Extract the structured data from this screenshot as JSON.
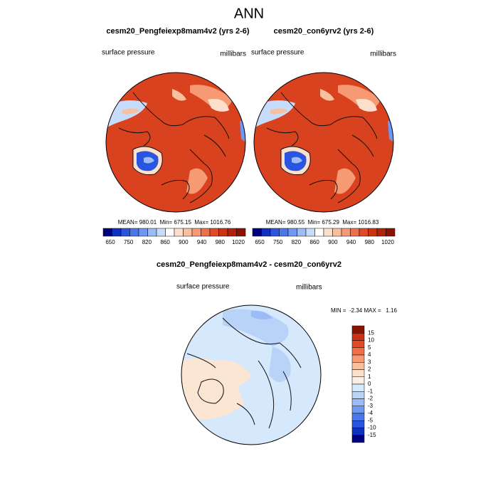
{
  "title": "ANN",
  "panels": [
    {
      "title": "cesm20_Pengfeiexp8mam4v2 (yrs 2-6)",
      "variable": "surface pressure",
      "units": "millibars",
      "stats": "MEAN= 980.01  Min= 675.15  Max= 1016.76"
    },
    {
      "title": "cesm20_con6yrv2 (yrs 2-6)",
      "variable": "surface pressure",
      "units": "millibars",
      "stats": "MEAN= 980.55  Min= 675.29  Max= 1016.83"
    },
    {
      "title": "cesm20_Pengfeiexp8mam4v2 - cesm20_con6yrv2",
      "variable": "surface pressure",
      "units": "millibars",
      "stats": "MIN =  -2.34 MAX =   1.16"
    }
  ],
  "colorbar": {
    "labels": [
      650,
      750,
      820,
      860,
      900,
      940,
      980,
      1020
    ],
    "colors": [
      "#00007f",
      "#1030c0",
      "#2a55e0",
      "#4a78ec",
      "#6f98f2",
      "#9bbcf6",
      "#c6dcfa",
      "#ffffff",
      "#fde0cc",
      "#f9c0a0",
      "#f59a72",
      "#ef7048",
      "#e24a26",
      "#cc3214",
      "#b02208",
      "#8a1200"
    ]
  },
  "diff_colorbar": {
    "labels": [
      15,
      10,
      5,
      4,
      3,
      2,
      1,
      0,
      -1,
      -2,
      -3,
      -4,
      -5,
      -10,
      -15
    ],
    "colors": [
      "#8a1200",
      "#cc3214",
      "#e24a26",
      "#ef7048",
      "#f59a72",
      "#f9c0a0",
      "#fde0cc",
      "#fbeee4",
      "#d6e8fb",
      "#b9d2f8",
      "#9bbcf6",
      "#6f98f2",
      "#4a78ec",
      "#2a55e0",
      "#1030c0",
      "#00007f"
    ]
  }
}
